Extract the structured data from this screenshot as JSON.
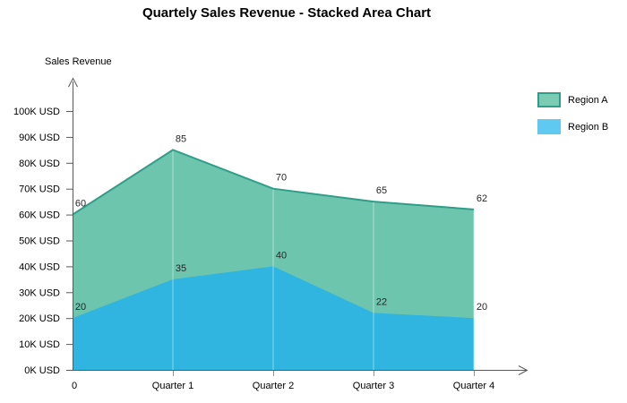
{
  "chart_data": {
    "type": "area",
    "stacked": true,
    "title": "Quartely Sales Revenue - Stacked Area Chart",
    "ylabel": "Sales Revenue",
    "xlabel": "",
    "categories": [
      "0",
      "Quarter 1",
      "Quarter 2",
      "Quarter 3",
      "Quarter 4"
    ],
    "y_ticks": [
      "0K USD",
      "10K USD",
      "20K USD",
      "30K USD",
      "40K USD",
      "50K USD",
      "60K USD",
      "70K USD",
      "80K USD",
      "90K USD",
      "100K USD"
    ],
    "ylim": [
      0,
      110
    ],
    "grid": "light vertical lines at quarter positions",
    "legend_position": "right",
    "axis_color": "#595959",
    "data_label_color": "#262626",
    "series": [
      {
        "name": "Region A",
        "values": [
          60,
          85,
          70,
          65,
          62
        ],
        "fill": "#6EC5AE",
        "stroke": "#2F9E88",
        "legend_fill": "#7CCBB4"
      },
      {
        "name": "Region B",
        "values": [
          20,
          35,
          40,
          22,
          20
        ],
        "fill": "#2FB5DF",
        "stroke": "",
        "legend_fill": "#5FC9F1"
      }
    ]
  }
}
